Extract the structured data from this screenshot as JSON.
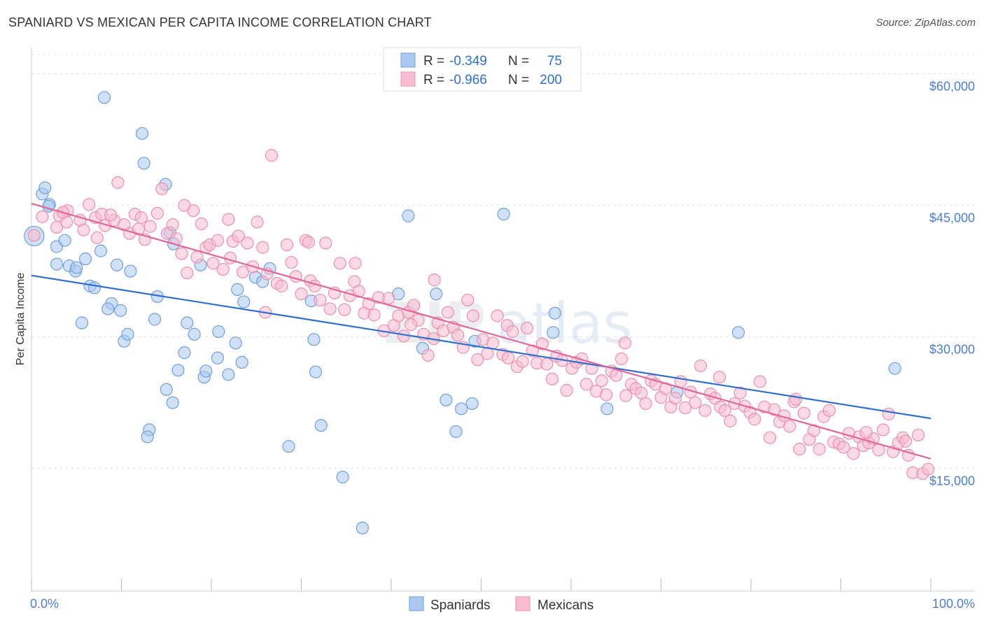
{
  "title": "SPANIARD VS MEXICAN PER CAPITA INCOME CORRELATION CHART",
  "source": "Source: ZipAtlas.com",
  "watermark": {
    "left": "ZIP",
    "right": "atlas"
  },
  "legend_top": {
    "r_label": "R =",
    "n_label": "N =",
    "rows": [
      {
        "r": "-0.349",
        "n": "75"
      },
      {
        "r": "-0.966",
        "n": "200"
      }
    ]
  },
  "colors": {
    "spaniards_fill": "#aac8f0",
    "spaniards_stroke": "#6f9fdc",
    "spaniards_line": "#2f6fd0",
    "mexicans_fill": "#f7bcd0",
    "mexicans_stroke": "#ec8fae",
    "mexicans_line": "#e0679a",
    "tick_label": "#4a7fd0",
    "legend_value": "#2f6fd0"
  },
  "chart_data": {
    "type": "scatter",
    "title": "SPANIARD VS MEXICAN PER CAPITA INCOME CORRELATION CHART",
    "xlabel": "",
    "ylabel": "Per Capita Income",
    "xlim": [
      0,
      100
    ],
    "ylim": [
      1000,
      63000
    ],
    "x_tick_labels": [
      "0.0%",
      "100.0%"
    ],
    "y_ticks": [
      {
        "value": 60000,
        "label": "$60,000"
      },
      {
        "value": 45000,
        "label": "$45,000"
      },
      {
        "value": 30000,
        "label": "$30,000"
      },
      {
        "value": 15000,
        "label": "$15,000"
      }
    ],
    "grid": true,
    "legend_position": "bottom-center",
    "series": [
      {
        "name": "Spaniards",
        "r": -0.349,
        "n": 75,
        "trend": {
          "x": [
            0,
            100
          ],
          "y": [
            37000,
            20700
          ]
        },
        "points": [
          [
            0.3,
            41500
          ],
          [
            1.2,
            46300
          ],
          [
            1.5,
            47000
          ],
          [
            2.0,
            45100
          ],
          [
            1.9,
            44900
          ],
          [
            2.8,
            40300
          ],
          [
            3.7,
            41000
          ],
          [
            2.8,
            38300
          ],
          [
            4.2,
            38100
          ],
          [
            4.9,
            37500
          ],
          [
            5.0,
            37900
          ],
          [
            6.0,
            38900
          ],
          [
            7.7,
            39800
          ],
          [
            8.1,
            57300
          ],
          [
            6.5,
            35800
          ],
          [
            7.0,
            35600
          ],
          [
            8.9,
            33800
          ],
          [
            8.5,
            33200
          ],
          [
            9.5,
            38200
          ],
          [
            9.9,
            33000
          ],
          [
            11.0,
            37500
          ],
          [
            10.3,
            29500
          ],
          [
            10.7,
            30300
          ],
          [
            12.3,
            53200
          ],
          [
            12.5,
            49800
          ],
          [
            14.9,
            47400
          ],
          [
            15.4,
            41900
          ],
          [
            14.0,
            34600
          ],
          [
            13.7,
            32000
          ],
          [
            15.8,
            40600
          ],
          [
            17.3,
            31600
          ],
          [
            18.8,
            38200
          ],
          [
            18.1,
            30300
          ],
          [
            17.0,
            28200
          ],
          [
            16.3,
            26200
          ],
          [
            15.0,
            24000
          ],
          [
            15.7,
            22500
          ],
          [
            13.1,
            19400
          ],
          [
            12.9,
            18600
          ],
          [
            5.6,
            31600
          ],
          [
            19.2,
            25400
          ],
          [
            19.4,
            26100
          ],
          [
            20.8,
            30600
          ],
          [
            20.7,
            27600
          ],
          [
            21.9,
            25700
          ],
          [
            22.7,
            29300
          ],
          [
            22.9,
            35400
          ],
          [
            23.4,
            27100
          ],
          [
            23.6,
            34000
          ],
          [
            24.9,
            36800
          ],
          [
            25.7,
            36300
          ],
          [
            26.5,
            37800
          ],
          [
            31.1,
            34100
          ],
          [
            31.4,
            29700
          ],
          [
            31.6,
            26000
          ],
          [
            32.2,
            19900
          ],
          [
            28.6,
            17500
          ],
          [
            34.6,
            14000
          ],
          [
            36.8,
            8200
          ],
          [
            40.8,
            34900
          ],
          [
            41.9,
            43800
          ],
          [
            43.5,
            28700
          ],
          [
            45.0,
            34900
          ],
          [
            46.1,
            22800
          ],
          [
            47.8,
            21800
          ],
          [
            47.2,
            19200
          ],
          [
            49.0,
            22400
          ],
          [
            49.3,
            29500
          ],
          [
            52.5,
            44000
          ],
          [
            58.2,
            32700
          ],
          [
            58.0,
            30500
          ],
          [
            64.0,
            21800
          ],
          [
            71.8,
            23700
          ],
          [
            78.6,
            30500
          ],
          [
            96.0,
            26400
          ]
        ]
      },
      {
        "name": "Mexicans",
        "r": -0.966,
        "n": 200,
        "trend": {
          "x": [
            0,
            100
          ],
          "y": [
            45200,
            16100
          ]
        },
        "points": [
          [
            0.3,
            41600
          ],
          [
            1.2,
            43700
          ],
          [
            2.8,
            42500
          ],
          [
            3.1,
            43800
          ],
          [
            3.9,
            43100
          ],
          [
            4.0,
            44400
          ],
          [
            5.4,
            43300
          ],
          [
            5.8,
            42200
          ],
          [
            6.4,
            45100
          ],
          [
            7.1,
            43600
          ],
          [
            7.3,
            41300
          ],
          [
            7.8,
            44000
          ],
          [
            8.2,
            42700
          ],
          [
            9.2,
            43300
          ],
          [
            9.6,
            47600
          ],
          [
            10.3,
            42800
          ],
          [
            10.9,
            41800
          ],
          [
            11.5,
            44000
          ],
          [
            11.9,
            42300
          ],
          [
            12.2,
            43600
          ],
          [
            12.6,
            41100
          ],
          [
            13.2,
            42600
          ],
          [
            14.0,
            44100
          ],
          [
            14.5,
            46900
          ],
          [
            15.1,
            41800
          ],
          [
            15.7,
            42800
          ],
          [
            16.1,
            41200
          ],
          [
            16.7,
            39500
          ],
          [
            17.3,
            37300
          ],
          [
            18.0,
            44400
          ],
          [
            18.4,
            39100
          ],
          [
            18.9,
            42900
          ],
          [
            19.4,
            40200
          ],
          [
            19.8,
            40500
          ],
          [
            20.2,
            38400
          ],
          [
            20.7,
            41000
          ],
          [
            21.3,
            37700
          ],
          [
            21.9,
            43400
          ],
          [
            22.4,
            40900
          ],
          [
            23.0,
            41500
          ],
          [
            23.5,
            37400
          ],
          [
            24.0,
            40700
          ],
          [
            24.6,
            38000
          ],
          [
            25.1,
            43100
          ],
          [
            25.7,
            40200
          ],
          [
            26.2,
            37200
          ],
          [
            26.7,
            50700
          ],
          [
            27.3,
            36100
          ],
          [
            27.8,
            35800
          ],
          [
            28.4,
            40500
          ],
          [
            28.9,
            38500
          ],
          [
            29.4,
            36900
          ],
          [
            30.0,
            34900
          ],
          [
            30.5,
            41000
          ],
          [
            31.0,
            36400
          ],
          [
            31.5,
            35800
          ],
          [
            32.1,
            34200
          ],
          [
            32.7,
            40700
          ],
          [
            33.2,
            33200
          ],
          [
            33.7,
            35000
          ],
          [
            34.3,
            38400
          ],
          [
            34.8,
            33100
          ],
          [
            35.4,
            34700
          ],
          [
            35.9,
            36300
          ],
          [
            36.4,
            35200
          ],
          [
            37.0,
            32700
          ],
          [
            37.5,
            33800
          ],
          [
            38.1,
            32500
          ],
          [
            38.6,
            34500
          ],
          [
            39.2,
            30700
          ],
          [
            39.7,
            34400
          ],
          [
            40.3,
            31300
          ],
          [
            40.8,
            32400
          ],
          [
            41.4,
            30100
          ],
          [
            41.9,
            32800
          ],
          [
            42.5,
            33600
          ],
          [
            43.0,
            31900
          ],
          [
            43.6,
            30300
          ],
          [
            44.1,
            27900
          ],
          [
            44.7,
            29800
          ],
          [
            45.2,
            31600
          ],
          [
            45.8,
            30700
          ],
          [
            46.3,
            32800
          ],
          [
            46.9,
            31100
          ],
          [
            47.4,
            30200
          ],
          [
            48.0,
            28800
          ],
          [
            48.5,
            34200
          ],
          [
            49.1,
            32400
          ],
          [
            49.6,
            27400
          ],
          [
            50.2,
            29700
          ],
          [
            50.7,
            28100
          ],
          [
            51.3,
            29300
          ],
          [
            51.8,
            32400
          ],
          [
            52.4,
            28000
          ],
          [
            52.9,
            31300
          ],
          [
            53.5,
            30600
          ],
          [
            54.0,
            26600
          ],
          [
            54.6,
            27200
          ],
          [
            55.1,
            31000
          ],
          [
            55.7,
            28400
          ],
          [
            56.2,
            27000
          ],
          [
            56.8,
            29200
          ],
          [
            57.3,
            26900
          ],
          [
            57.9,
            25200
          ],
          [
            58.4,
            27800
          ],
          [
            59.0,
            27300
          ],
          [
            59.5,
            23900
          ],
          [
            60.1,
            26400
          ],
          [
            60.6,
            27100
          ],
          [
            61.2,
            27500
          ],
          [
            61.7,
            24600
          ],
          [
            62.3,
            26400
          ],
          [
            62.8,
            23800
          ],
          [
            63.4,
            25000
          ],
          [
            63.9,
            23400
          ],
          [
            64.5,
            26100
          ],
          [
            65.0,
            25600
          ],
          [
            65.6,
            27500
          ],
          [
            66.1,
            23300
          ],
          [
            66.7,
            24600
          ],
          [
            67.2,
            24100
          ],
          [
            67.8,
            23600
          ],
          [
            68.3,
            22400
          ],
          [
            68.9,
            25000
          ],
          [
            69.4,
            24600
          ],
          [
            70.0,
            23100
          ],
          [
            70.5,
            24100
          ],
          [
            71.1,
            22000
          ],
          [
            71.6,
            23000
          ],
          [
            72.2,
            24900
          ],
          [
            72.7,
            21900
          ],
          [
            73.3,
            23700
          ],
          [
            73.8,
            22500
          ],
          [
            74.4,
            26700
          ],
          [
            74.9,
            21600
          ],
          [
            75.5,
            23500
          ],
          [
            76.0,
            23000
          ],
          [
            76.6,
            22000
          ],
          [
            77.1,
            21600
          ],
          [
            77.7,
            20400
          ],
          [
            78.2,
            22400
          ],
          [
            78.8,
            23600
          ],
          [
            79.3,
            22100
          ],
          [
            79.9,
            21400
          ],
          [
            80.4,
            20600
          ],
          [
            81.0,
            24900
          ],
          [
            81.5,
            22000
          ],
          [
            82.1,
            18500
          ],
          [
            82.6,
            21700
          ],
          [
            83.2,
            20300
          ],
          [
            83.7,
            21000
          ],
          [
            84.3,
            19800
          ],
          [
            84.8,
            22600
          ],
          [
            85.4,
            17200
          ],
          [
            85.9,
            21300
          ],
          [
            86.5,
            18300
          ],
          [
            87.0,
            19300
          ],
          [
            87.6,
            17200
          ],
          [
            88.1,
            20900
          ],
          [
            88.7,
            21600
          ],
          [
            89.2,
            18000
          ],
          [
            89.8,
            17800
          ],
          [
            90.3,
            17400
          ],
          [
            90.9,
            19000
          ],
          [
            91.4,
            16700
          ],
          [
            92.0,
            18600
          ],
          [
            92.5,
            17600
          ],
          [
            93.1,
            17900
          ],
          [
            93.6,
            18400
          ],
          [
            94.2,
            17100
          ],
          [
            94.7,
            19400
          ],
          [
            95.3,
            21200
          ],
          [
            95.8,
            16900
          ],
          [
            96.4,
            17900
          ],
          [
            96.9,
            18500
          ],
          [
            97.5,
            16500
          ],
          [
            98.0,
            14500
          ],
          [
            98.6,
            18800
          ],
          [
            99.1,
            14400
          ],
          [
            99.7,
            14900
          ],
          [
            3.5,
            44200
          ],
          [
            8.8,
            43900
          ],
          [
            17.0,
            45000
          ],
          [
            22.1,
            39000
          ],
          [
            26.0,
            32800
          ],
          [
            36.0,
            38400
          ],
          [
            44.8,
            36500
          ],
          [
            53.0,
            27600
          ],
          [
            66.0,
            29300
          ],
          [
            76.5,
            25400
          ],
          [
            85.0,
            22900
          ],
          [
            92.8,
            19100
          ],
          [
            97.2,
            18100
          ],
          [
            30.8,
            40800
          ],
          [
            42.2,
            31400
          ]
        ]
      }
    ]
  }
}
